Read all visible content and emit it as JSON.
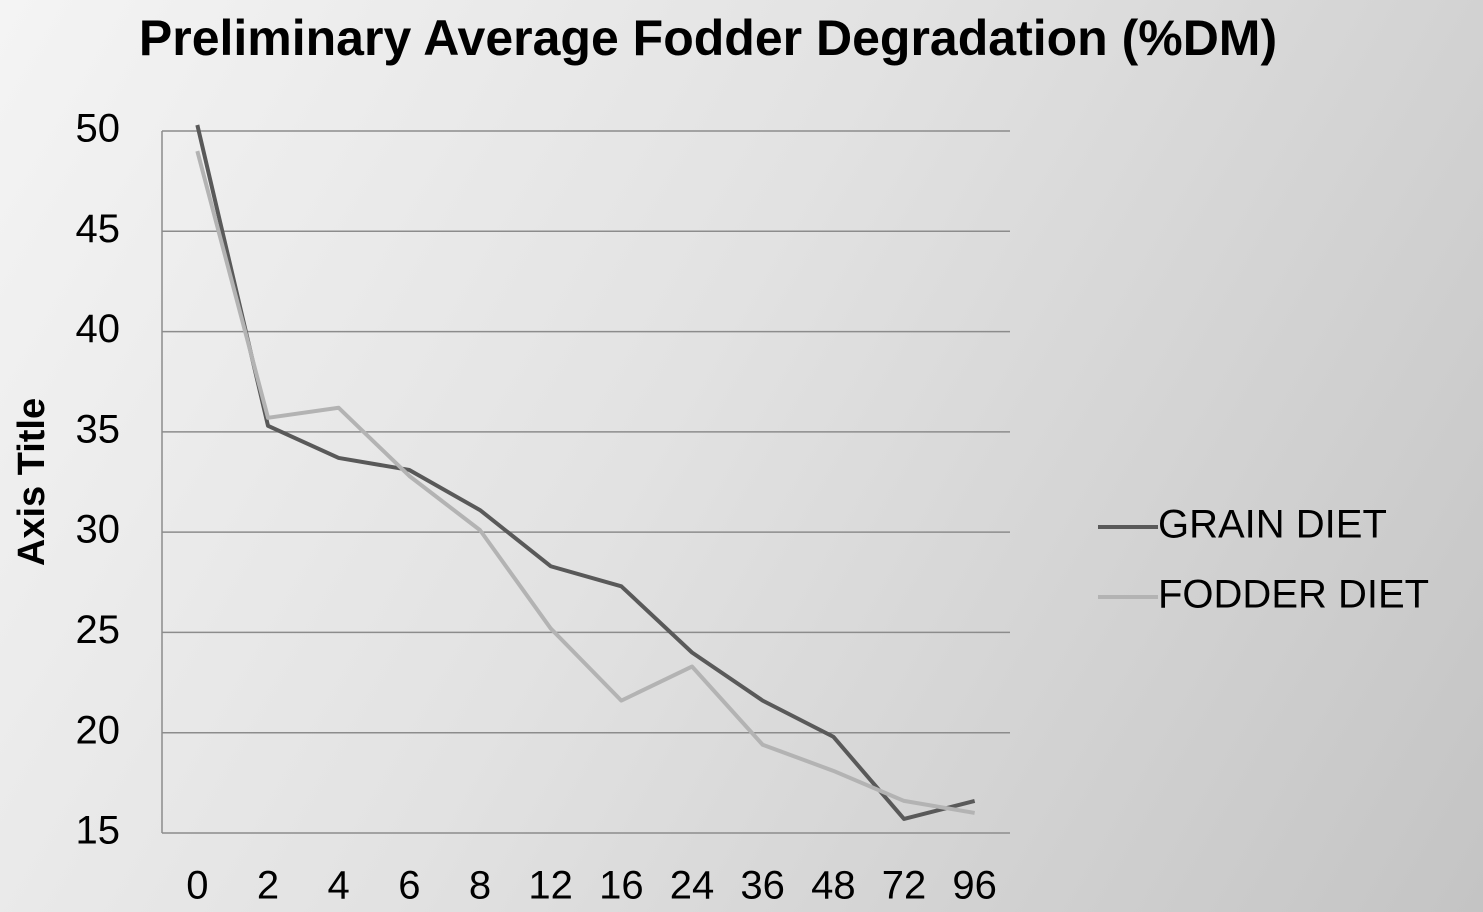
{
  "chart_data": {
    "type": "line",
    "title": "Preliminary Average Fodder Degradation (%DM)",
    "y_label": "Axis Title",
    "categories": [
      "0",
      "2",
      "4",
      "6",
      "8",
      "12",
      "16",
      "24",
      "36",
      "48",
      "72",
      "96"
    ],
    "series": [
      {
        "name": "GRAIN DIET",
        "color": "#595959",
        "values": [
          50.3,
          35.3,
          33.7,
          33.1,
          31.1,
          28.3,
          27.3,
          24.0,
          21.6,
          19.8,
          15.7,
          16.6
        ]
      },
      {
        "name": "FODDER DIET",
        "color": "#b3b3b3",
        "values": [
          49.0,
          35.7,
          36.2,
          32.8,
          30.1,
          25.2,
          21.6,
          23.3,
          19.4,
          18.1,
          16.6,
          16.0
        ]
      }
    ],
    "ylim": [
      15,
      50
    ],
    "yticks": [
      15,
      20,
      25,
      30,
      35,
      40,
      45,
      50
    ],
    "grid": true,
    "legend": "right"
  }
}
